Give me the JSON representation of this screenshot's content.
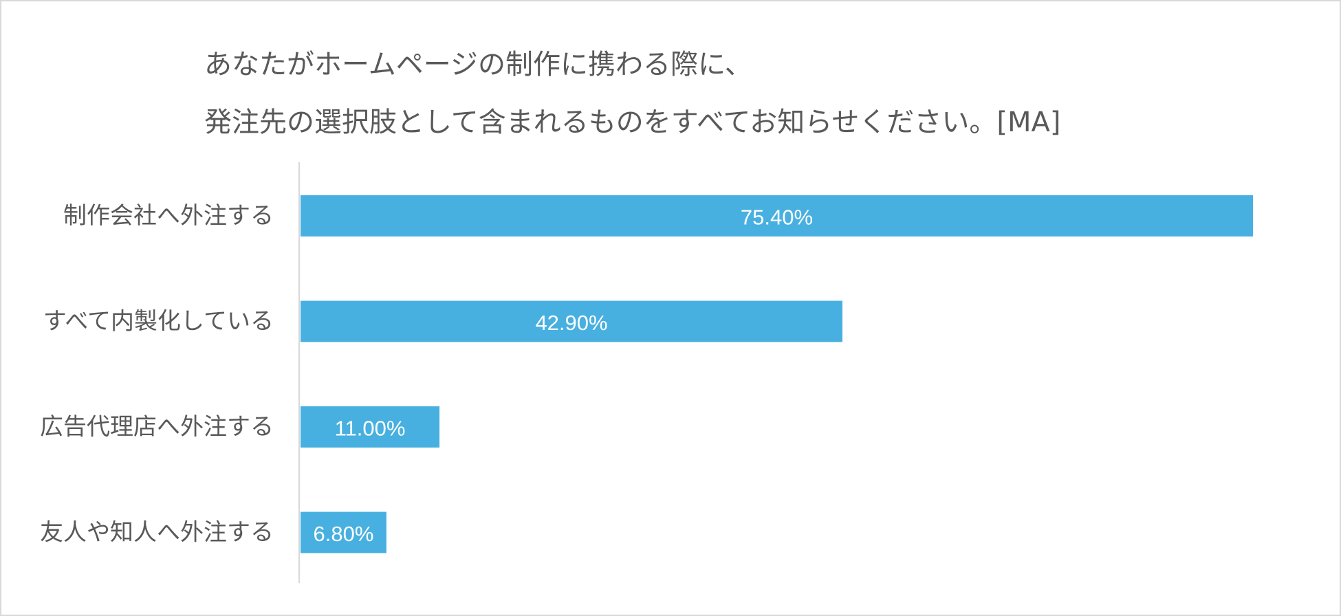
{
  "chart_data": {
    "type": "bar",
    "orientation": "horizontal",
    "title_lines": [
      "あなたがホームページの制作に携わる際に、",
      "発注先の選択肢として含まれるものをすべてお知らせください。[MA]"
    ],
    "categories": [
      "制作会社へ外注する",
      "すべて内製化している",
      "広告代理店へ外注する",
      "友人や知人へ外注する"
    ],
    "values": [
      75.4,
      42.9,
      11.0,
      6.8
    ],
    "data_labels": [
      "75.40%",
      "42.90%",
      "11.00%",
      "6.80%"
    ],
    "unit": "%",
    "xlim": [
      0,
      80
    ],
    "grid": false,
    "legend": "none",
    "colors": {
      "bar": "#47b0e0",
      "axis": "#d9d9d9",
      "label": "#595959",
      "data_label": "#ffffff",
      "border": "#d9d9d9"
    }
  }
}
